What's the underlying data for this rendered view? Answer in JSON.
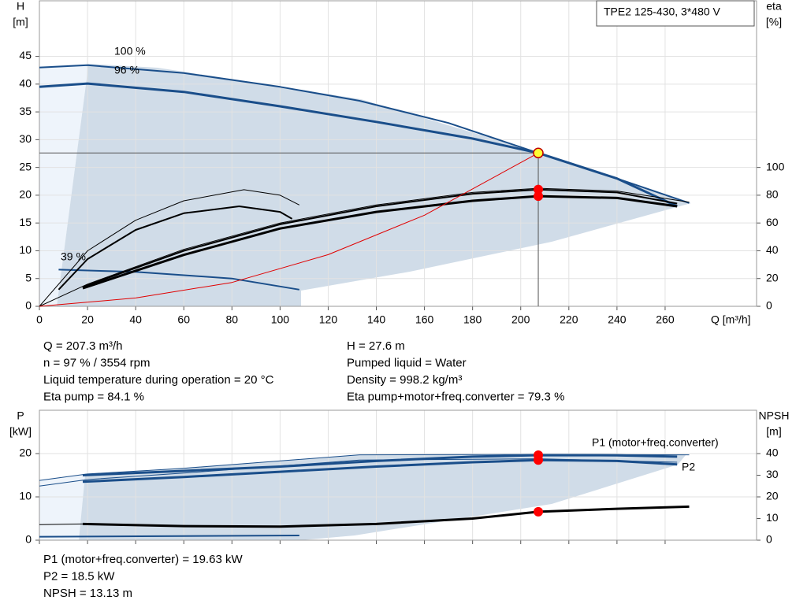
{
  "chart_data": [
    {
      "type": "line",
      "title": "TPE2 125-430, 3*480 V",
      "ylabel": [
        "H",
        "[m]"
      ],
      "y2label": [
        "eta",
        "[%]"
      ],
      "xlabel": "Q [m³/h]",
      "xlim": [
        0,
        298
      ],
      "xticks": [
        0,
        20,
        40,
        60,
        80,
        100,
        120,
        140,
        160,
        180,
        200,
        220,
        240,
        260
      ],
      "ylim": [
        0,
        55
      ],
      "yticks": [
        0,
        5,
        10,
        15,
        20,
        25,
        30,
        35,
        40,
        45
      ],
      "y2lim": [
        0,
        220
      ],
      "y2ticks": [
        0,
        20,
        40,
        60,
        80,
        100
      ],
      "grid": true,
      "series": [
        {
          "name": "100 %",
          "color": "#1a4e8a",
          "width": 2,
          "x": [
            0,
            20,
            60,
            100,
            133,
            170,
            207.3,
            240,
            270
          ],
          "values": [
            43,
            43.4,
            42,
            39.5,
            37,
            33,
            27.6,
            23,
            18.6
          ]
        },
        {
          "name": "96 %",
          "color": "#1a4e8a",
          "width": 3,
          "x": [
            0,
            20,
            60,
            100,
            140,
            180,
            207.3,
            240,
            265
          ],
          "values": [
            39.5,
            40.1,
            38.6,
            36,
            33.2,
            30.2,
            27.6,
            23,
            18
          ]
        },
        {
          "name": "39 %",
          "color": "#1a4e8a",
          "width": 2,
          "x": [
            8,
            40,
            80,
            108
          ],
          "values": [
            6.6,
            6.2,
            5,
            3
          ]
        },
        {
          "color": "#000000",
          "width": 1,
          "axis": "y2",
          "x": [
            0,
            20,
            60,
            100,
            140,
            180,
            207.3,
            240,
            270
          ],
          "values": [
            0,
            16,
            41,
            60,
            73,
            82,
            85,
            83,
            75
          ]
        },
        {
          "color": "#000000",
          "width": 2,
          "axis": "y2",
          "x": [
            18,
            60,
            100,
            140,
            180,
            207.3,
            240,
            265
          ],
          "values": [
            14,
            40,
            59,
            72,
            81,
            84.1,
            82,
            74
          ]
        },
        {
          "color": "#000000",
          "width": 3,
          "axis": "y2",
          "x": [
            18,
            60,
            100,
            140,
            180,
            207.3,
            240,
            265
          ],
          "values": [
            13,
            37,
            56,
            68,
            76,
            79.3,
            78,
            72
          ]
        },
        {
          "color": "#000000",
          "width": 1,
          "axis": "y2",
          "x": [
            0,
            20,
            40,
            60,
            85,
            100,
            108
          ],
          "values": [
            0,
            40,
            62,
            76,
            84,
            80,
            73
          ]
        },
        {
          "color": "#000000",
          "width": 2,
          "axis": "y2",
          "x": [
            8,
            20,
            40,
            60,
            83,
            100,
            105
          ],
          "values": [
            12,
            34,
            55,
            67,
            72,
            68,
            63
          ]
        },
        {
          "color": "#e00000",
          "width": 1,
          "x": [
            0,
            40,
            80,
            120,
            160,
            207.3
          ],
          "values": [
            0,
            1.5,
            4.3,
            9.3,
            16.4,
            27.6
          ]
        }
      ],
      "markers": [
        {
          "x": 207.3,
          "y": 27.6,
          "color": "#ffff33",
          "crosshair": true
        },
        {
          "x": 207.3,
          "y": 84.1,
          "axis": "y2",
          "color": "#ff0000"
        },
        {
          "x": 207.3,
          "y": 79.3,
          "axis": "y2",
          "color": "#ff0000"
        }
      ]
    },
    {
      "type": "line",
      "ylabel": [
        "P",
        "[kW]"
      ],
      "y2label": [
        "NPSH",
        "[m]"
      ],
      "xlim": [
        0,
        298
      ],
      "xticks": [
        0,
        20,
        40,
        60,
        80,
        100,
        120,
        140,
        160,
        180,
        200,
        220,
        240,
        260
      ],
      "xtick_labels": false,
      "ylim": [
        0,
        30
      ],
      "yticks": [
        0,
        10,
        20
      ],
      "y2lim": [
        0,
        60
      ],
      "y2ticks": [
        0,
        10,
        20,
        30,
        40
      ],
      "grid": true,
      "series": [
        {
          "color": "#1a4e8a",
          "width": 1,
          "x": [
            0,
            20,
            60,
            133,
            207.3,
            270
          ],
          "values": [
            13.8,
            15.3,
            16.6,
            19.7,
            19.8,
            19.7
          ]
        },
        {
          "name": "P1 (motor+freq.converter)",
          "color": "#1a4e8a",
          "width": 3,
          "x": [
            18,
            60,
            100,
            140,
            180,
            207.3,
            240,
            265
          ],
          "values": [
            15,
            16,
            17,
            18.3,
            19.3,
            19.63,
            19.6,
            19.3
          ]
        },
        {
          "color": "#1a4e8a",
          "width": 1,
          "x": [
            0,
            20,
            60,
            133,
            207.3,
            265
          ],
          "values": [
            12.5,
            14,
            15.5,
            18.5,
            18.8,
            18
          ]
        },
        {
          "name": "P2",
          "color": "#1a4e8a",
          "width": 3,
          "x": [
            18,
            60,
            100,
            140,
            180,
            207.3,
            240,
            265
          ],
          "values": [
            13.5,
            14.6,
            15.8,
            17,
            18,
            18.5,
            18.3,
            17.5
          ]
        },
        {
          "color": "#1a4e8a",
          "width": 2,
          "x": [
            0,
            108
          ],
          "values": [
            0.8,
            1.1
          ]
        },
        {
          "color": "#000000",
          "width": 1,
          "axis": "y2",
          "x": [
            0,
            18
          ],
          "values": [
            7.2,
            7.5
          ]
        },
        {
          "color": "#000000",
          "width": 3,
          "axis": "y2",
          "x": [
            18,
            60,
            100,
            140,
            180,
            207.3,
            240,
            270
          ],
          "values": [
            7.5,
            6.5,
            6.3,
            7.5,
            10,
            13.13,
            14.5,
            15.5
          ]
        }
      ],
      "markers": [
        {
          "x": 207.3,
          "y": 19.63,
          "color": "#ff0000"
        },
        {
          "x": 207.3,
          "y": 18.5,
          "color": "#ff0000"
        },
        {
          "x": 207.3,
          "y": 13.13,
          "axis": "y2",
          "color": "#ff0000"
        }
      ]
    }
  ],
  "info": {
    "left": [
      "Q = 207.3 m³/h",
      "n = 97 % / 3554 rpm",
      "Liquid temperature during operation = 20 °C",
      "Eta pump = 84.1 %"
    ],
    "right": [
      "H = 27.6 m",
      "Pumped liquid = Water",
      "Density = 998.2 kg/m³",
      "Eta pump+motor+freq.converter = 79.3 %"
    ],
    "bottom": [
      "P1 (motor+freq.converter) = 19.63 kW",
      "P2 = 18.5 kW",
      "NPSH = 13.13 m"
    ]
  }
}
